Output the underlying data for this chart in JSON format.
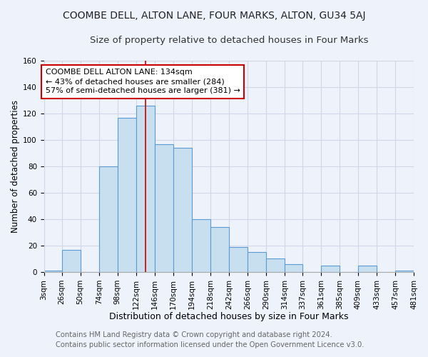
{
  "title": "COOMBE DELL, ALTON LANE, FOUR MARKS, ALTON, GU34 5AJ",
  "subtitle": "Size of property relative to detached houses in Four Marks",
  "xlabel": "Distribution of detached houses by size in Four Marks",
  "ylabel": "Number of detached properties",
  "footer_line1": "Contains HM Land Registry data © Crown copyright and database right 2024.",
  "footer_line2": "Contains public sector information licensed under the Open Government Licence v3.0.",
  "bin_edges": [
    3,
    26,
    50,
    74,
    98,
    122,
    146,
    170,
    194,
    218,
    242,
    266,
    290,
    314,
    337,
    361,
    385,
    409,
    433,
    457,
    481
  ],
  "bar_heights": [
    1,
    17,
    0,
    80,
    117,
    126,
    97,
    94,
    40,
    34,
    19,
    15,
    10,
    6,
    0,
    5,
    0,
    5,
    0,
    1
  ],
  "bar_color": "#c8dff0",
  "bar_edge_color": "#5b9bd5",
  "property_size": 134,
  "vline_color": "#cc0000",
  "annotation_line1": "COOMBE DELL ALTON LANE: 134sqm",
  "annotation_line2": "← 43% of detached houses are smaller (284)",
  "annotation_line3": "57% of semi-detached houses are larger (381) →",
  "annotation_box_color": "#ffffff",
  "annotation_box_edge_color": "#cc0000",
  "ylim": [
    0,
    160
  ],
  "background_color": "#eef2fa",
  "grid_color": "#d0d8e8",
  "title_fontsize": 10,
  "subtitle_fontsize": 9.5,
  "xlabel_fontsize": 9,
  "ylabel_fontsize": 8.5,
  "tick_fontsize": 7.5,
  "annotation_fontsize": 8,
  "footer_fontsize": 7.2
}
